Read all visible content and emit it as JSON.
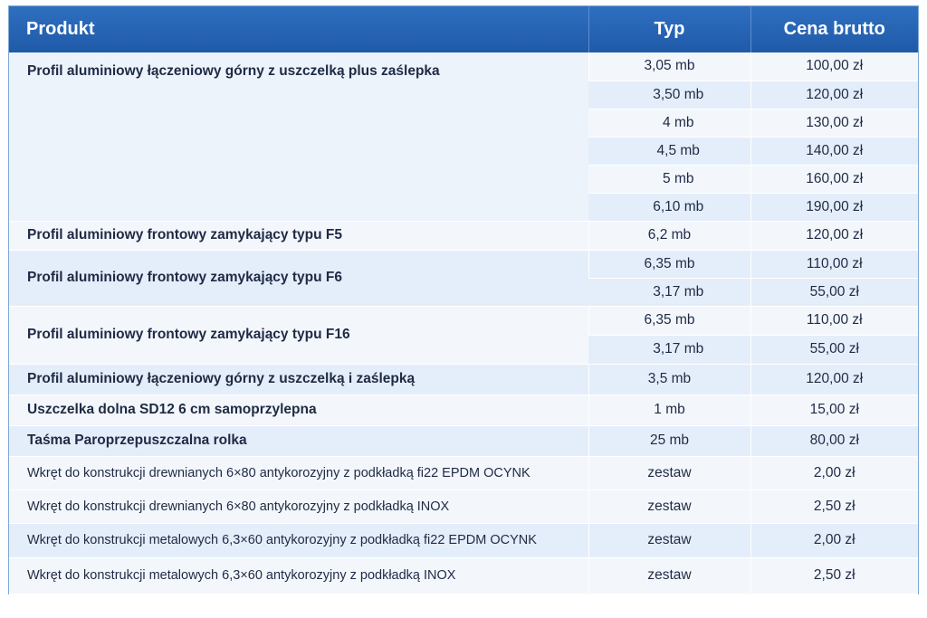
{
  "table": {
    "headers": {
      "product": "Produkt",
      "type": "Typ",
      "price": "Cena brutto"
    },
    "groups": [
      {
        "product": "Profil aluminiowy łączeniowy górny z uszczelką plus zaślepka",
        "rows": [
          {
            "type": "3,05 mb",
            "price": "100,00 zł"
          },
          {
            "type": "3,50 mb",
            "price": "120,00 zł"
          },
          {
            "type": "4 mb",
            "price": "130,00 zł"
          },
          {
            "type": "4,5 mb",
            "price": "140,00 zł"
          },
          {
            "type": "5 mb",
            "price": "160,00 zł"
          },
          {
            "type": "6,10 mb",
            "price": "190,00 zł"
          }
        ]
      },
      {
        "product": "Profil aluminiowy frontowy zamykający typu F5",
        "rows": [
          {
            "type": "6,2 mb",
            "price": "120,00 zł"
          }
        ]
      },
      {
        "product": "Profil aluminiowy frontowy zamykający typu F6",
        "rows": [
          {
            "type": "6,35 mb",
            "price": "110,00 zł"
          },
          {
            "type": "3,17 mb",
            "price": "55,00 zł"
          }
        ]
      },
      {
        "product": "Profil aluminiowy frontowy zamykający typu F16",
        "rows": [
          {
            "type": "6,35 mb",
            "price": "110,00 zł"
          },
          {
            "type": "3,17 mb",
            "price": "55,00 zł"
          }
        ]
      },
      {
        "product": "Profil aluminiowy łączeniowy górny z uszczelką i zaślepką",
        "rows": [
          {
            "type": "3,5 mb",
            "price": "120,00 zł"
          }
        ]
      },
      {
        "product": "Uszczelka dolna SD12 6 cm samoprzylepna",
        "rows": [
          {
            "type": "1 mb",
            "price": "15,00 zł"
          }
        ]
      },
      {
        "product": "Taśma Paroprzepuszczalna rolka",
        "rows": [
          {
            "type": "25 mb",
            "price": "80,00 zł"
          }
        ]
      },
      {
        "product": "Wkręt do konstrukcji drewnianych 6×80 antykorozyjny z podkładką fi22 EPDM OCYNK",
        "rows": [
          {
            "type": "zestaw",
            "price": "2,00 zł"
          }
        ]
      },
      {
        "product": "Wkręt do konstrukcji drewnianych 6×80 antykorozyjny z podkładką INOX",
        "rows": [
          {
            "type": "zestaw",
            "price": "2,50 zł"
          }
        ]
      },
      {
        "product": "Wkręt do konstrukcji metalowych 6,3×60 antykorozyjny z podkładką fi22 EPDM OCYNK",
        "rows": [
          {
            "type": "zestaw",
            "price": "2,00 zł"
          }
        ]
      },
      {
        "product": "Wkręt do konstrukcji metalowych 6,3×60 antykorozyjny z podkładką INOX",
        "rows": [
          {
            "type": "zestaw",
            "price": "2,50 zł"
          }
        ]
      }
    ]
  }
}
